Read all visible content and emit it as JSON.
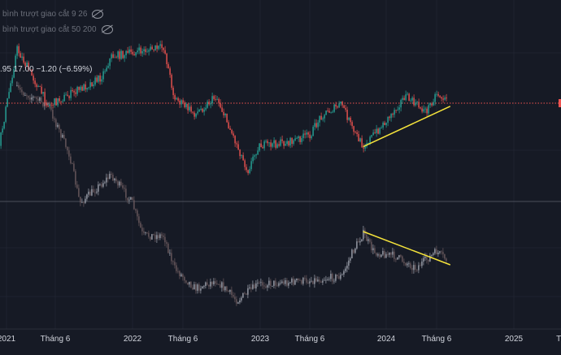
{
  "legend": {
    "ma1_label": "bình trượt giao cắt 9 26",
    "ma2_label": "bình trượt giao cắt 50 200",
    "ma_visibility_icon": "eye-crossed-icon"
  },
  "ohlc_readout": ".95  17.00  −1.20 (−6.59%)",
  "colors": {
    "background": "#161a25",
    "up": "#26a69a",
    "down": "#ef5350",
    "compare": "#8a8e99",
    "trendline": "#f5e33b",
    "price_line": "#ef5350"
  },
  "chart_data": {
    "type": "candlestick",
    "x_ticks": [
      "2021",
      "Tháng 6",
      "2022",
      "Tháng 6",
      "2023",
      "Tháng 6",
      "2024",
      "Tháng 6",
      "2025",
      "Th"
    ],
    "last_price": 17.0,
    "grid": true,
    "series": [
      {
        "role": "main",
        "points": [
          [
            "2020-12",
            9.4
          ],
          [
            "2021-02",
            24.0
          ],
          [
            "2021-05",
            16.7
          ],
          [
            "2021-08",
            18.8
          ],
          [
            "2021-10",
            20.3
          ],
          [
            "2021-11",
            23.0
          ],
          [
            "2022-01",
            23.5
          ],
          [
            "2022-04",
            24.2
          ],
          [
            "2022-05",
            17.7
          ],
          [
            "2022-07",
            15.6
          ],
          [
            "2022-09",
            17.9
          ],
          [
            "2022-11",
            11.5
          ],
          [
            "2022-12",
            8.3
          ],
          [
            "2023-01",
            11.5
          ],
          [
            "2023-04",
            12.0
          ],
          [
            "2023-06",
            13.0
          ],
          [
            "2023-07",
            15.4
          ],
          [
            "2023-09",
            16.9
          ],
          [
            "2023-10",
            13.6
          ],
          [
            "2023-11",
            11.5
          ],
          [
            "2024-01",
            14.4
          ],
          [
            "2024-03",
            17.9
          ],
          [
            "2024-05",
            15.9
          ],
          [
            "2024-06",
            18.3
          ],
          [
            "2024-07",
            17.2
          ]
        ]
      },
      {
        "role": "compare",
        "points": [
          [
            "2021-02",
            29.0
          ],
          [
            "2021-05",
            27.0
          ],
          [
            "2021-07",
            21.0
          ],
          [
            "2021-08",
            15.0
          ],
          [
            "2021-11",
            18.5
          ],
          [
            "2022-01",
            15.0
          ],
          [
            "2022-02",
            11.0
          ],
          [
            "2022-04",
            11.0
          ],
          [
            "2022-05",
            7.0
          ],
          [
            "2022-07",
            4.5
          ],
          [
            "2022-09",
            5.5
          ],
          [
            "2022-11",
            3.0
          ],
          [
            "2023-01",
            5.0
          ],
          [
            "2023-06",
            5.5
          ],
          [
            "2023-09",
            6.0
          ],
          [
            "2023-10",
            9.0
          ],
          [
            "2023-11",
            11.3
          ],
          [
            "2023-12",
            9.0
          ],
          [
            "2024-02",
            8.5
          ],
          [
            "2024-04",
            7.0
          ],
          [
            "2024-06",
            9.0
          ],
          [
            "2024-07",
            8.0
          ]
        ]
      }
    ],
    "trendlines": [
      {
        "series": "main",
        "from": [
          "2023-11",
          11.4
        ],
        "to": [
          "2024-07",
          16.6
        ]
      },
      {
        "series": "compare",
        "from": [
          "2023-11",
          11.5
        ],
        "to": [
          "2024-07",
          7.4
        ]
      }
    ]
  }
}
